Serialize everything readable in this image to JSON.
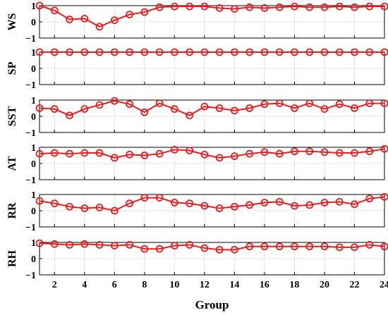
{
  "chart_data": {
    "type": "line",
    "xlabel": "Group",
    "x": [
      1,
      2,
      3,
      4,
      5,
      6,
      7,
      8,
      9,
      10,
      11,
      12,
      13,
      14,
      15,
      16,
      17,
      18,
      19,
      20,
      21,
      22,
      23,
      24
    ],
    "xlim": [
      1,
      24
    ],
    "xticks": [
      "2",
      "4",
      "6",
      "8",
      "10",
      "12",
      "14",
      "16",
      "18",
      "20",
      "22",
      "24"
    ],
    "ylim": [
      -1,
      1
    ],
    "yticks": [
      "-1",
      "0",
      "1"
    ],
    "grid": true,
    "line_color": "#ee1c1c",
    "marker": "open-circle",
    "panels": [
      {
        "ylabel": "WS",
        "values": [
          1.0,
          0.7,
          0.15,
          0.2,
          -0.3,
          0.1,
          0.45,
          0.6,
          0.9,
          0.95,
          0.95,
          0.95,
          0.85,
          0.8,
          0.9,
          0.85,
          0.9,
          0.95,
          0.9,
          0.9,
          0.95,
          0.9,
          0.95,
          0.95
        ]
      },
      {
        "ylabel": "SP",
        "values": [
          1,
          1,
          1,
          1,
          1,
          1,
          1,
          1,
          1,
          1,
          1,
          1,
          1,
          1,
          1,
          1,
          1,
          1,
          1,
          1,
          1,
          1,
          1,
          1
        ]
      },
      {
        "ylabel": "SST",
        "values": [
          0.5,
          0.45,
          0.05,
          0.45,
          0.7,
          0.95,
          0.75,
          0.25,
          0.8,
          0.45,
          0.05,
          0.6,
          0.5,
          0.35,
          0.5,
          0.75,
          0.8,
          0.5,
          0.8,
          0.45,
          0.75,
          0.5,
          0.8,
          0.8
        ]
      },
      {
        "ylabel": "AT",
        "values": [
          0.6,
          0.65,
          0.6,
          0.65,
          0.65,
          0.35,
          0.55,
          0.5,
          0.6,
          0.85,
          0.8,
          0.55,
          0.35,
          0.45,
          0.6,
          0.7,
          0.6,
          0.75,
          0.75,
          0.7,
          0.65,
          0.65,
          0.75,
          0.9
        ]
      },
      {
        "ylabel": "RR",
        "values": [
          0.6,
          0.45,
          0.25,
          0.15,
          0.2,
          0.0,
          0.45,
          0.8,
          0.8,
          0.5,
          0.45,
          0.3,
          0.15,
          0.25,
          0.35,
          0.5,
          0.55,
          0.3,
          0.35,
          0.5,
          0.55,
          0.4,
          0.75,
          0.85
        ]
      },
      {
        "ylabel": "RH",
        "values": [
          0.95,
          0.9,
          0.85,
          0.9,
          0.85,
          0.8,
          0.85,
          0.6,
          0.6,
          0.8,
          0.85,
          0.65,
          0.55,
          0.55,
          0.75,
          0.75,
          0.75,
          0.75,
          0.75,
          0.75,
          0.7,
          0.7,
          0.85,
          0.75
        ]
      }
    ]
  }
}
